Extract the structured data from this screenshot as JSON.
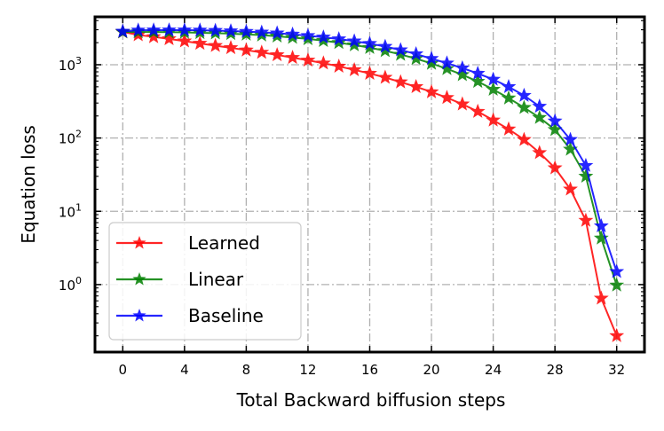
{
  "chart_data": {
    "type": "line",
    "xlabel": "Total Backward biffusion steps",
    "ylabel": "Equation loss",
    "xlim": [
      -1.8,
      33.8
    ],
    "ylim": [
      0.12,
      4500
    ],
    "yscale": "log",
    "xticks": [
      0,
      4,
      8,
      12,
      16,
      20,
      24,
      28,
      32
    ],
    "yticks": [
      {
        "value": 1,
        "base": "10",
        "exp": "0"
      },
      {
        "value": 10,
        "base": "10",
        "exp": "1"
      },
      {
        "value": 100,
        "base": "10",
        "exp": "2"
      },
      {
        "value": 1000,
        "base": "10",
        "exp": "3"
      }
    ],
    "grid": true,
    "legend_position": "lower-left",
    "marker": "star",
    "series": [
      {
        "name": "Learned",
        "color": "#ff0000",
        "x": [
          0,
          1,
          2,
          3,
          4,
          5,
          6,
          7,
          8,
          9,
          10,
          11,
          12,
          13,
          14,
          15,
          16,
          17,
          18,
          19,
          20,
          21,
          22,
          23,
          24,
          25,
          26,
          27,
          28,
          29,
          30,
          31,
          32
        ],
        "y": [
          2800,
          2550,
          2400,
          2250,
          2100,
          1950,
          1820,
          1700,
          1580,
          1470,
          1360,
          1250,
          1150,
          1050,
          950,
          850,
          760,
          670,
          580,
          500,
          425,
          355,
          290,
          230,
          175,
          132,
          95,
          63,
          39,
          20,
          7.5,
          0.65,
          0.2
        ]
      },
      {
        "name": "Linear",
        "color": "#008000",
        "x": [
          0,
          1,
          2,
          3,
          4,
          5,
          6,
          7,
          8,
          9,
          10,
          11,
          12,
          13,
          14,
          15,
          16,
          17,
          18,
          19,
          20,
          21,
          22,
          23,
          24,
          25,
          26,
          27,
          28,
          29,
          30,
          31,
          32
        ],
        "y": [
          2800,
          2800,
          2790,
          2780,
          2760,
          2730,
          2700,
          2650,
          2600,
          2530,
          2450,
          2350,
          2250,
          2130,
          2000,
          1860,
          1710,
          1550,
          1380,
          1210,
          1040,
          880,
          730,
          590,
          460,
          350,
          260,
          190,
          130,
          70,
          30,
          4.3,
          0.98
        ]
      },
      {
        "name": "Baseline",
        "color": "#0000ff",
        "x": [
          0,
          1,
          2,
          3,
          4,
          5,
          6,
          7,
          8,
          9,
          10,
          11,
          12,
          13,
          14,
          15,
          16,
          17,
          18,
          19,
          20,
          21,
          22,
          23,
          24,
          25,
          26,
          27,
          28,
          29,
          30,
          31,
          32
        ],
        "y": [
          2850,
          2950,
          2960,
          2960,
          2960,
          2950,
          2920,
          2880,
          2830,
          2770,
          2700,
          2600,
          2490,
          2370,
          2240,
          2100,
          1940,
          1770,
          1590,
          1400,
          1210,
          1050,
          900,
          760,
          630,
          500,
          380,
          270,
          170,
          95,
          42,
          6.3,
          1.5
        ]
      }
    ]
  }
}
